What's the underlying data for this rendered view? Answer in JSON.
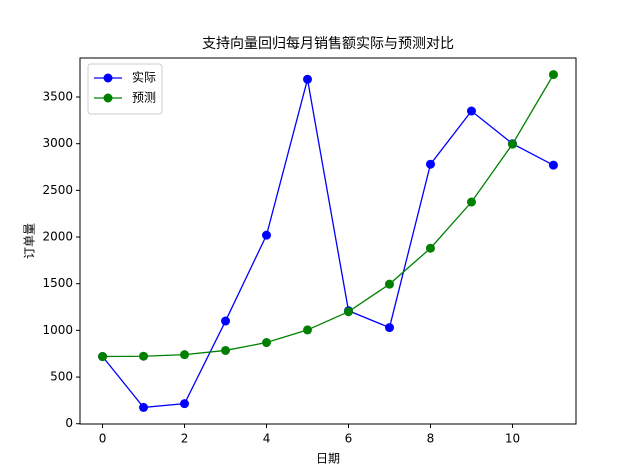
{
  "chart_data": {
    "type": "line",
    "title": "支持向量回归每月销售额实际与预测对比",
    "x_label": "日期",
    "y_label": "订单量",
    "x": [
      0,
      1,
      2,
      3,
      4,
      5,
      6,
      7,
      8,
      9,
      10,
      11
    ],
    "series": [
      {
        "name": "实际",
        "color": "#0000ff",
        "values": [
          720,
          175,
          215,
          1100,
          2020,
          3690,
          1210,
          1030,
          2780,
          3350,
          3000,
          2770
        ]
      },
      {
        "name": "预测",
        "color": "#008000",
        "values": [
          720,
          723,
          740,
          785,
          870,
          1005,
          1200,
          1495,
          1880,
          2375,
          2995,
          3740
        ]
      }
    ],
    "xlim": [
      -0.55,
      11.55
    ],
    "xticks": [
      0,
      2,
      4,
      6,
      8,
      10
    ],
    "ylim": [
      -3,
      3918
    ],
    "yticks": [
      0,
      500,
      1000,
      1500,
      2000,
      2500,
      3000,
      3500
    ],
    "legend": "upper left",
    "grid": false
  }
}
